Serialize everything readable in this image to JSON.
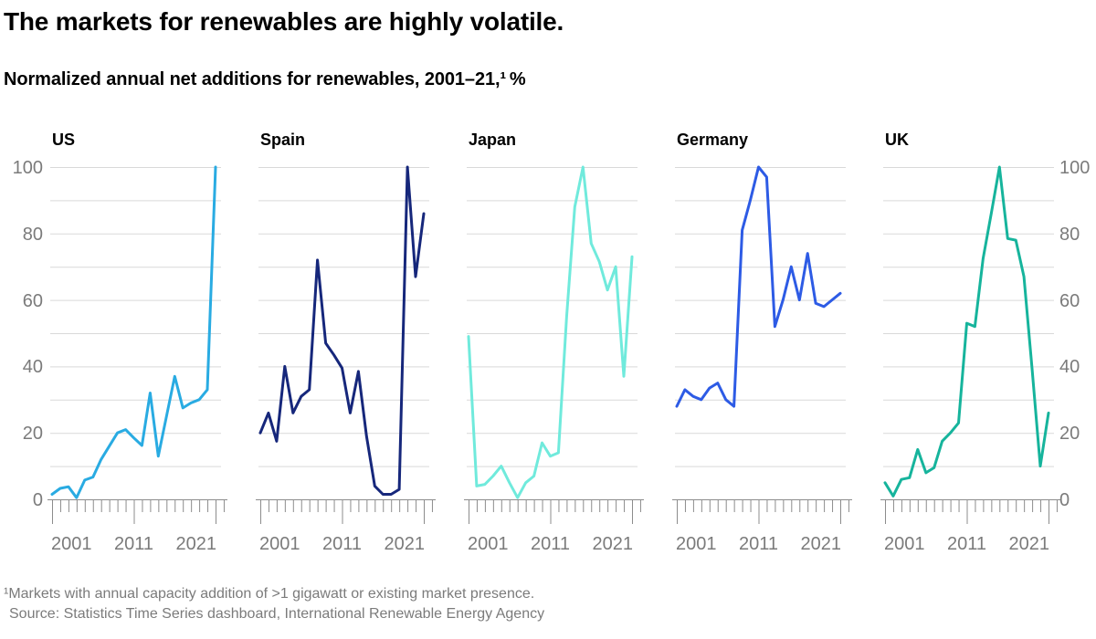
{
  "title": "The markets for renewables are highly volatile.",
  "subtitle": "Normalized annual net additions for renewables, 2001–21,¹ %",
  "footnote": {
    "line1": "¹Markets with annual capacity addition of >1 gigawatt or existing market presence.",
    "line2": "Source: Statistics Time Series dashboard, International Renewable Energy Agency"
  },
  "colors": {
    "grid": "#D9D9D9",
    "axis": "#8C8C8C",
    "tick_label": "#7B7B7B",
    "text": "#000000"
  },
  "chart_data": {
    "type": "line",
    "small_multiples": true,
    "title": "Normalized annual net additions for renewables, 2001–21, %",
    "x": [
      2001,
      2002,
      2003,
      2004,
      2005,
      2006,
      2007,
      2008,
      2009,
      2010,
      2011,
      2012,
      2013,
      2014,
      2015,
      2016,
      2017,
      2018,
      2019,
      2020,
      2021
    ],
    "x_major_ticks": [
      2001,
      2011,
      2021
    ],
    "x_minor_tick_end": 2022,
    "ylim": [
      0,
      100
    ],
    "y_ticks": [
      0,
      20,
      40,
      60,
      80,
      100
    ],
    "gridline_step": 10,
    "grid": true,
    "legend": "panel titles above each plot; y axis labeled on far left and far right only",
    "series": [
      {
        "name": "US",
        "color": "#29ABE2",
        "values": [
          1.5,
          3.3,
          3.8,
          0.5,
          5.8,
          6.7,
          12,
          16,
          20,
          21,
          18.5,
          16.2,
          32,
          13,
          25,
          37,
          27.5,
          29,
          30,
          33,
          100
        ]
      },
      {
        "name": "Spain",
        "color": "#16277B",
        "values": [
          20,
          26,
          17.5,
          40,
          26,
          31,
          33,
          72,
          47,
          43.5,
          39.5,
          26,
          38.5,
          19,
          4,
          1.5,
          1.5,
          3,
          100,
          67,
          86
        ]
      },
      {
        "name": "Japan",
        "color": "#70EADC",
        "values": [
          49,
          4,
          4.5,
          7,
          10,
          5,
          0.5,
          5,
          7,
          17,
          13,
          14,
          55,
          88,
          100,
          77,
          71.5,
          63,
          70,
          37,
          73
        ]
      },
      {
        "name": "Germany",
        "color": "#2D5BE5",
        "values": [
          28,
          33,
          31,
          30,
          33.5,
          35,
          30,
          28,
          81,
          90,
          100,
          97,
          52,
          60,
          70,
          60,
          74,
          59,
          58,
          60,
          62
        ]
      },
      {
        "name": "UK",
        "color": "#16B49C",
        "values": [
          5,
          1,
          6,
          6.5,
          15,
          8,
          9.5,
          17.5,
          20,
          23,
          53,
          52,
          72.5,
          86,
          100,
          78.5,
          78,
          67,
          39,
          10,
          26
        ]
      }
    ]
  }
}
